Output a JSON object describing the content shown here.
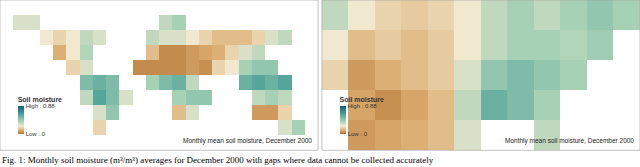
{
  "chart_data": [
    {
      "type": "heatmap",
      "tick_labels": false,
      "annotation": "Monthly mean soil moisture, December 2000",
      "colorbar": {
        "title": "Soil moisture",
        "range": [
          0,
          0.88
        ],
        "ticks": [
          {
            "value": 0.88,
            "label": "High : 0.88"
          },
          {
            "value": 0,
            "label": "Low : 0"
          }
        ]
      },
      "x": [
        -172.5,
        -157.5,
        -142.5,
        -127.5,
        -112.5,
        -97.5,
        -82.5,
        -67.5,
        -52.5,
        -37.5,
        -22.5,
        -7.5,
        7.5,
        22.5,
        37.5,
        52.5,
        67.5,
        82.5,
        97.5,
        112.5,
        127.5,
        142.5,
        157.5,
        172.5
      ],
      "y": [
        77.5,
        62.5,
        47.5,
        32.5,
        17.5,
        2.5,
        -12.5,
        -27.5,
        -42.5,
        -57.5
      ],
      "cells": [
        [
          null,
          null,
          null,
          null,
          null,
          null,
          null,
          null,
          null,
          null,
          null,
          null,
          null,
          null,
          null,
          null,
          null,
          null,
          null,
          null,
          null,
          null,
          null,
          null
        ],
        [
          null,
          0.3,
          0.3,
          null,
          null,
          null,
          null,
          null,
          null,
          null,
          null,
          null,
          0.35,
          0.4,
          null,
          null,
          null,
          null,
          null,
          null,
          null,
          null,
          null,
          null
        ],
        [
          null,
          null,
          null,
          0.25,
          0.2,
          0.25,
          0.35,
          0.3,
          null,
          null,
          null,
          0.35,
          0.3,
          0.3,
          0.25,
          0.2,
          0.15,
          0.15,
          0.15,
          0.2,
          0.3,
          0.35,
          null,
          null
        ],
        [
          null,
          null,
          null,
          null,
          0.12,
          0.25,
          0.38,
          null,
          null,
          null,
          null,
          0.15,
          0.05,
          0.05,
          0.08,
          0.1,
          0.12,
          0.2,
          0.3,
          0.35,
          null,
          null,
          null,
          null
        ],
        [
          null,
          null,
          null,
          null,
          null,
          0.2,
          0.3,
          null,
          null,
          null,
          0.05,
          0.05,
          0.05,
          0.05,
          0.08,
          0.06,
          0.2,
          0.25,
          0.4,
          0.45,
          0.45,
          null,
          null,
          null
        ],
        [
          null,
          null,
          null,
          null,
          null,
          null,
          0.5,
          0.55,
          0.5,
          null,
          null,
          0.4,
          0.5,
          0.55,
          0.35,
          null,
          null,
          null,
          0.55,
          0.6,
          0.55,
          0.6,
          null,
          null
        ],
        [
          null,
          null,
          null,
          null,
          null,
          null,
          0.35,
          0.6,
          0.5,
          0.3,
          null,
          null,
          null,
          0.4,
          0.45,
          0.45,
          null,
          null,
          null,
          0.35,
          0.4,
          0.35,
          null,
          null
        ],
        [
          null,
          null,
          null,
          null,
          null,
          null,
          null,
          0.3,
          0.45,
          null,
          null,
          null,
          null,
          0.15,
          0.3,
          null,
          null,
          null,
          null,
          0.08,
          0.08,
          0.2,
          null,
          null
        ],
        [
          null,
          null,
          null,
          null,
          null,
          null,
          null,
          0.2,
          null,
          null,
          null,
          null,
          null,
          null,
          null,
          null,
          null,
          null,
          null,
          null,
          null,
          0.3,
          0.4,
          null
        ],
        [
          null,
          null,
          null,
          null,
          null,
          null,
          null,
          null,
          null,
          null,
          null,
          null,
          null,
          null,
          null,
          null,
          null,
          null,
          null,
          null,
          null,
          null,
          null,
          null
        ]
      ]
    },
    {
      "type": "heatmap",
      "tick_labels": false,
      "annotation": "Monthly mean soil moisture, December 2000",
      "colorbar": {
        "title": "Soil moisture",
        "range": [
          0,
          0.88
        ],
        "ticks": [
          {
            "value": 0.88,
            "label": "High : 0.88"
          },
          {
            "value": 0,
            "label": "Low : 0"
          }
        ]
      },
      "x": [
        -122.5,
        -117.5,
        -112.5,
        -107.5,
        -102.5,
        -97.5,
        -92.5,
        -87.5,
        -82.5,
        -77.5,
        -72.5,
        -67.5
      ],
      "y": [
        47.5,
        42.5,
        37.5,
        32.5,
        27.5
      ],
      "cells": [
        [
          0.35,
          0.25,
          0.2,
          0.18,
          0.2,
          0.25,
          0.35,
          0.4,
          0.35,
          0.4,
          0.45,
          0.4
        ],
        [
          0.25,
          0.15,
          0.18,
          0.15,
          0.18,
          0.25,
          0.35,
          0.4,
          0.4,
          0.38,
          0.42,
          null
        ],
        [
          0.2,
          0.08,
          0.12,
          0.15,
          0.18,
          0.3,
          0.45,
          0.5,
          0.45,
          0.4,
          null,
          null
        ],
        [
          null,
          0.1,
          0.06,
          0.1,
          0.15,
          0.35,
          0.55,
          0.5,
          0.4,
          null,
          null,
          null
        ],
        [
          null,
          0.08,
          0.1,
          0.12,
          0.15,
          0.3,
          null,
          null,
          0.35,
          null,
          null,
          null
        ]
      ]
    }
  ],
  "caption": "Fig. 1: Monthly soil moisture (m³/m³) averages for December 2000 with gaps where data cannot be collected accurately"
}
